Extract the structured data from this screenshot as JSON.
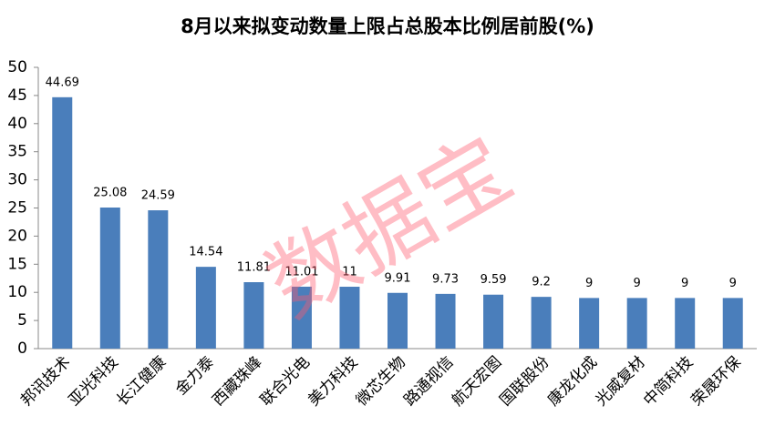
{
  "chart_data": {
    "type": "bar",
    "title": "8月以来拟变动数量上限占总股本比例居前股(%)",
    "categories": [
      "邦讯技术",
      "亚光科技",
      "长江健康",
      "金力泰",
      "西藏珠峰",
      "联合光电",
      "美力科技",
      "微芯生物",
      "路通视信",
      "航天宏图",
      "国联股份",
      "康龙化成",
      "光威复材",
      "中简科技",
      "荣晟环保"
    ],
    "values": [
      44.69,
      25.08,
      24.59,
      14.54,
      11.81,
      11.01,
      11,
      9.91,
      9.73,
      9.59,
      9.2,
      9,
      9,
      9,
      9
    ],
    "color": "#4a7ebb",
    "ylim": [
      0,
      50
    ],
    "yticks": [
      0,
      5,
      10,
      15,
      20,
      25,
      30,
      35,
      40,
      45,
      50
    ],
    "grid": false,
    "watermark": "数据宝"
  }
}
